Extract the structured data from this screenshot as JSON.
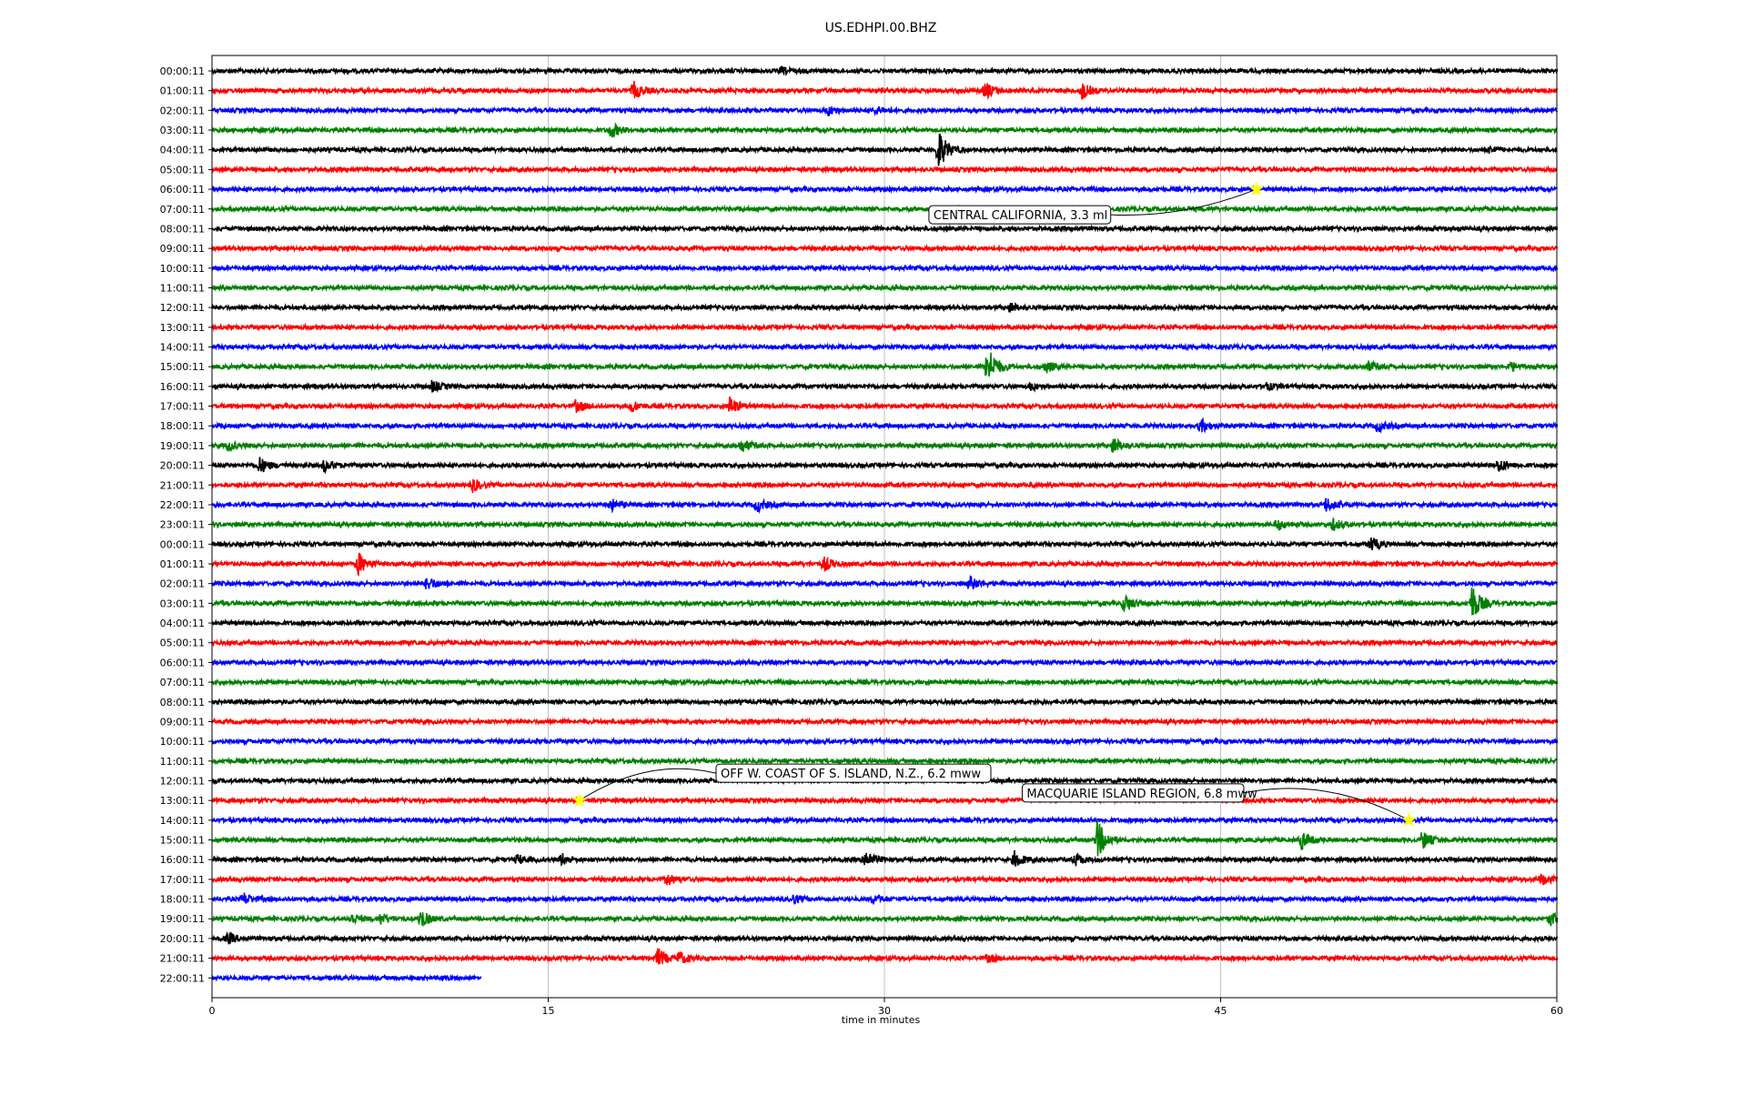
{
  "chart_data": {
    "type": "line",
    "title": "US.EDHPI.00.BHZ",
    "xlabel": "time in minutes",
    "xlim": [
      0,
      60
    ],
    "x_ticks": [
      "0",
      "15",
      "30",
      "45",
      "60"
    ],
    "row_labels": [
      "00:00:11",
      "01:00:11",
      "02:00:11",
      "03:00:11",
      "04:00:11",
      "05:00:11",
      "06:00:11",
      "07:00:11",
      "08:00:11",
      "09:00:11",
      "10:00:11",
      "11:00:11",
      "12:00:11",
      "13:00:11",
      "14:00:11",
      "15:00:11",
      "16:00:11",
      "17:00:11",
      "18:00:11",
      "19:00:11",
      "20:00:11",
      "21:00:11",
      "22:00:11",
      "23:00:11",
      "00:00:11",
      "01:00:11",
      "02:00:11",
      "03:00:11",
      "04:00:11",
      "05:00:11",
      "06:00:11",
      "07:00:11",
      "08:00:11",
      "09:00:11",
      "10:00:11",
      "11:00:11",
      "12:00:11",
      "13:00:11",
      "14:00:11",
      "15:00:11",
      "16:00:11",
      "17:00:11",
      "18:00:11",
      "19:00:11",
      "20:00:11",
      "21:00:11",
      "22:00:11"
    ],
    "trace_colors": [
      "#000000",
      "#ff0000",
      "#0000ff",
      "#008000"
    ],
    "last_trace_end_minute": 12,
    "grid_x": true,
    "events": [
      {
        "label": "CENTRAL CALIFORNIA, 3.3 ml",
        "row": 6,
        "minute": 46.6
      },
      {
        "label": "OFF W. COAST OF S. ISLAND, N.Z., 6.2 mww",
        "row": 37,
        "minute": 16.4
      },
      {
        "label": "MACQUARIE ISLAND REGION, 6.8 mww",
        "row": 38,
        "minute": 53.4
      }
    ],
    "bursts": [
      {
        "row": 0,
        "minute": 25.4,
        "amp": 0.3
      },
      {
        "row": 1,
        "minute": 18.8,
        "amp": 0.8
      },
      {
        "row": 1,
        "minute": 34.5,
        "amp": 0.7
      },
      {
        "row": 1,
        "minute": 38.8,
        "amp": 0.7
      },
      {
        "row": 2,
        "minute": 27.5,
        "amp": 0.4
      },
      {
        "row": 2,
        "minute": 29.6,
        "amp": 0.3
      },
      {
        "row": 3,
        "minute": 17.8,
        "amp": 0.7
      },
      {
        "row": 4,
        "minute": 32.4,
        "amp": 1.9
      },
      {
        "row": 4,
        "minute": 57,
        "amp": 0.3
      },
      {
        "row": 12,
        "minute": 35.6,
        "amp": 0.4
      },
      {
        "row": 15,
        "minute": 34.6,
        "amp": 1.9
      },
      {
        "row": 15,
        "minute": 37.2,
        "amp": 0.5
      },
      {
        "row": 15,
        "minute": 51.6,
        "amp": 0.4
      },
      {
        "row": 15,
        "minute": 57.9,
        "amp": 0.4
      },
      {
        "row": 16,
        "minute": 9.8,
        "amp": 0.5
      },
      {
        "row": 16,
        "minute": 36.5,
        "amp": 0.3
      },
      {
        "row": 16,
        "minute": 47,
        "amp": 0.3
      },
      {
        "row": 17,
        "minute": 16.2,
        "amp": 0.5
      },
      {
        "row": 17,
        "minute": 18.7,
        "amp": 0.5
      },
      {
        "row": 17,
        "minute": 23.1,
        "amp": 0.8
      },
      {
        "row": 18,
        "minute": 44.1,
        "amp": 0.6
      },
      {
        "row": 18,
        "minute": 52,
        "amp": 0.5
      },
      {
        "row": 19,
        "minute": 0.7,
        "amp": 0.4
      },
      {
        "row": 19,
        "minute": 23.6,
        "amp": 0.6
      },
      {
        "row": 19,
        "minute": 40.2,
        "amp": 0.7
      },
      {
        "row": 20,
        "minute": 2.1,
        "amp": 0.7
      },
      {
        "row": 20,
        "minute": 5,
        "amp": 0.5
      },
      {
        "row": 20,
        "minute": 57.4,
        "amp": 0.6
      },
      {
        "row": 21,
        "minute": 11.6,
        "amp": 0.6
      },
      {
        "row": 22,
        "minute": 17.8,
        "amp": 0.5
      },
      {
        "row": 22,
        "minute": 24.3,
        "amp": 0.6
      },
      {
        "row": 22,
        "minute": 49.7,
        "amp": 0.6
      },
      {
        "row": 23,
        "minute": 47.5,
        "amp": 0.5
      },
      {
        "row": 23,
        "minute": 50,
        "amp": 0.5
      },
      {
        "row": 24,
        "minute": 51.7,
        "amp": 0.6
      },
      {
        "row": 25,
        "minute": 6.5,
        "amp": 1.0
      },
      {
        "row": 25,
        "minute": 27.3,
        "amp": 0.6
      },
      {
        "row": 26,
        "minute": 9.6,
        "amp": 0.6
      },
      {
        "row": 26,
        "minute": 33.8,
        "amp": 0.6
      },
      {
        "row": 27,
        "minute": 40.7,
        "amp": 0.8
      },
      {
        "row": 27,
        "minute": 56.2,
        "amp": 1.7
      },
      {
        "row": 39,
        "minute": 39.5,
        "amp": 1.7
      },
      {
        "row": 39,
        "minute": 48.6,
        "amp": 0.8
      },
      {
        "row": 39,
        "minute": 54,
        "amp": 0.8
      },
      {
        "row": 40,
        "minute": 13.6,
        "amp": 0.4
      },
      {
        "row": 40,
        "minute": 15.6,
        "amp": 0.5
      },
      {
        "row": 40,
        "minute": 29.1,
        "amp": 0.9
      },
      {
        "row": 40,
        "minute": 35.8,
        "amp": 0.7
      },
      {
        "row": 40,
        "minute": 38.5,
        "amp": 0.5
      },
      {
        "row": 41,
        "minute": 20.3,
        "amp": 0.5
      },
      {
        "row": 41,
        "minute": 59.3,
        "amp": 0.5
      },
      {
        "row": 42,
        "minute": 1.4,
        "amp": 0.5
      },
      {
        "row": 42,
        "minute": 25.9,
        "amp": 0.4
      },
      {
        "row": 42,
        "minute": 29.5,
        "amp": 0.4
      },
      {
        "row": 43,
        "minute": 6.2,
        "amp": 0.5
      },
      {
        "row": 43,
        "minute": 7.5,
        "amp": 0.5
      },
      {
        "row": 43,
        "minute": 9.3,
        "amp": 0.8
      },
      {
        "row": 43,
        "minute": 59.7,
        "amp": 0.6
      },
      {
        "row": 44,
        "minute": 0.7,
        "amp": 0.5
      },
      {
        "row": 45,
        "minute": 19.9,
        "amp": 0.8
      },
      {
        "row": 45,
        "minute": 20.8,
        "amp": 0.6
      },
      {
        "row": 45,
        "minute": 34.6,
        "amp": 0.3
      }
    ]
  }
}
